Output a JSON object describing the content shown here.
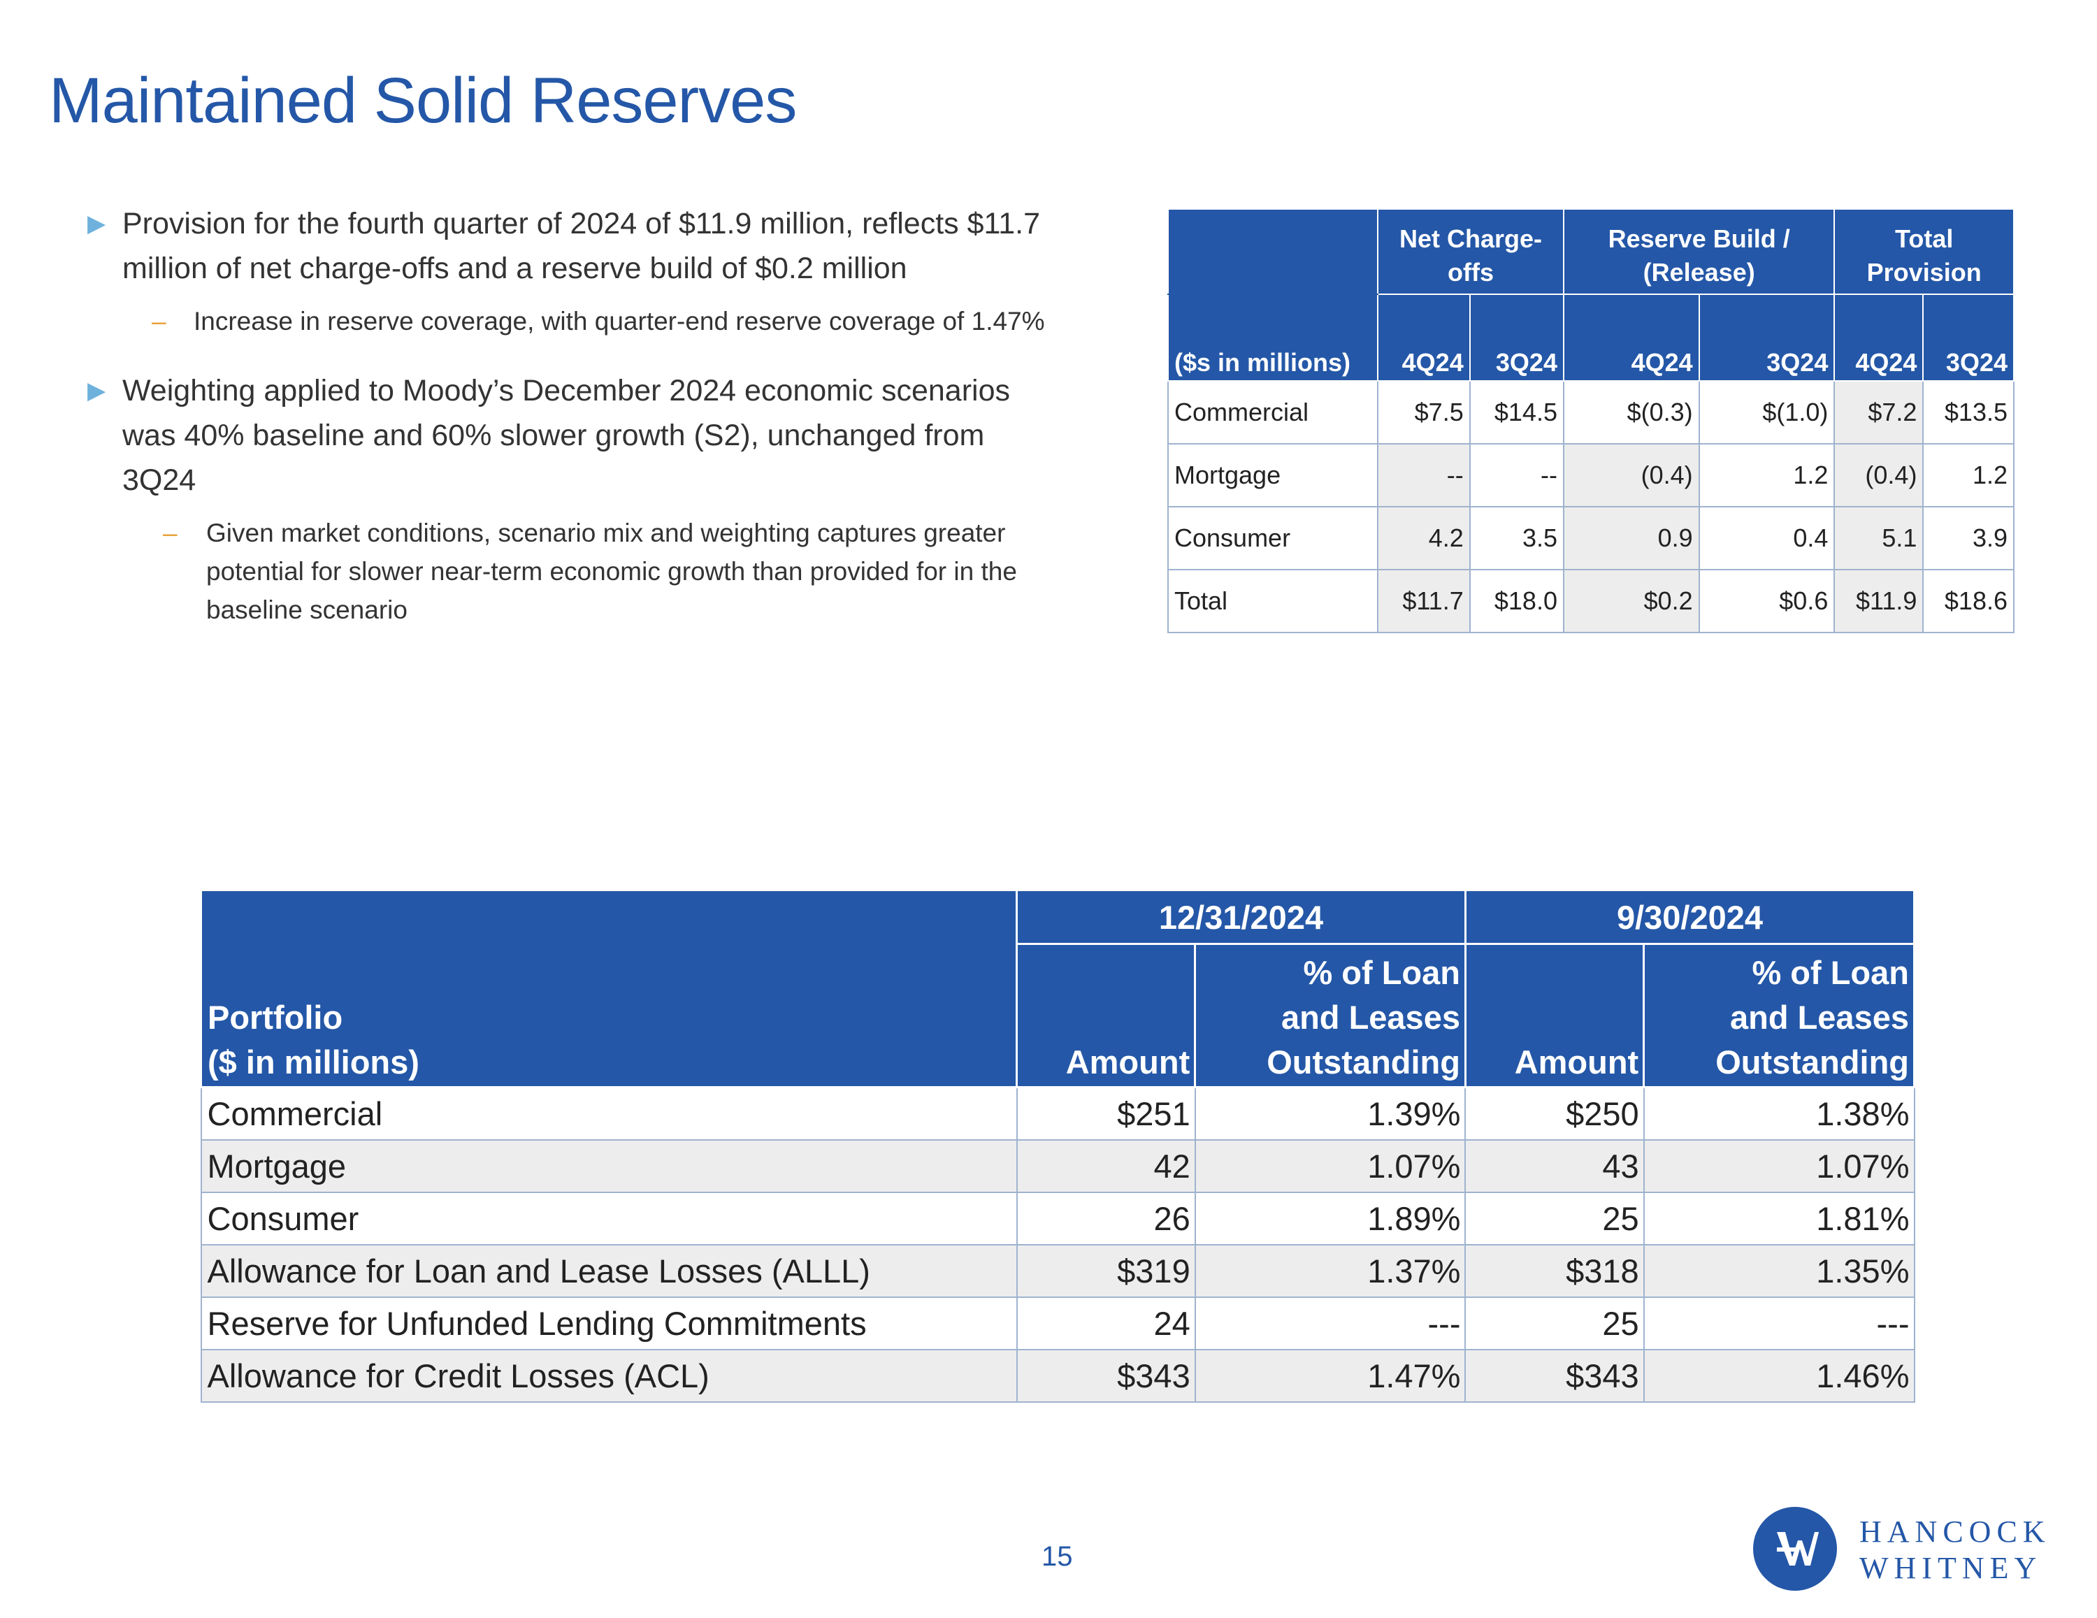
{
  "title": "Maintained Solid Reserves",
  "bullets": [
    {
      "text": "Provision for the fourth quarter of 2024 of $11.9 million, reflects $11.7 million of net charge-offs and a reserve build of $0.2 million",
      "sub": "Increase in reserve coverage, with quarter-end reserve coverage of 1.47%"
    },
    {
      "text": "Weighting applied to Moody’s December 2024 economic scenarios was 40% baseline and 60% slower growth (S2), unchanged from 3Q24",
      "sub": "Given market conditions, scenario mix and weighting captures greater potential for slower near-term economic growth than provided for in the baseline scenario"
    }
  ],
  "provision_table": {
    "unit_label": "($s in millions)",
    "groups": [
      "Net Charge-offs",
      "Reserve Build / (Release)",
      "Total Provision"
    ],
    "quarters": [
      "4Q24",
      "3Q24",
      "4Q24",
      "3Q24",
      "4Q24",
      "3Q24"
    ],
    "rows": [
      {
        "label": "Commercial",
        "values": [
          "$7.5",
          "$14.5",
          "$(0.3)",
          "$(1.0)",
          "$7.2",
          "$13.5"
        ]
      },
      {
        "label": "Mortgage",
        "values": [
          "--",
          "--",
          "(0.4)",
          "1.2",
          "(0.4)",
          "1.2"
        ]
      },
      {
        "label": "Consumer",
        "values": [
          "4.2",
          "3.5",
          "0.9",
          "0.4",
          "5.1",
          "3.9"
        ]
      },
      {
        "label": "Total",
        "values": [
          "$11.7",
          "$18.0",
          "$0.2",
          "$0.6",
          "$11.9",
          "$18.6"
        ]
      }
    ]
  },
  "reserve_table": {
    "portfolio_label": "Portfolio",
    "unit_label": "($ in millions)",
    "dates": [
      "12/31/2024",
      "9/30/2024"
    ],
    "col_amount": "Amount",
    "col_pct": [
      "% of Loan",
      "and Leases",
      "Outstanding"
    ],
    "rows": [
      {
        "label": "Commercial",
        "values": [
          "$251",
          "1.39%",
          "$250",
          "1.38%"
        ]
      },
      {
        "label": "Mortgage",
        "values": [
          "42",
          "1.07%",
          "43",
          "1.07%"
        ]
      },
      {
        "label": "Consumer",
        "values": [
          "26",
          "1.89%",
          "25",
          "1.81%"
        ]
      },
      {
        "label": "Allowance for Loan and Lease Losses (ALLL)",
        "values": [
          "$319",
          "1.37%",
          "$318",
          "1.35%"
        ]
      },
      {
        "label": "Reserve for Unfunded Lending Commitments",
        "values": [
          "24",
          "---",
          "25",
          "---"
        ]
      },
      {
        "label": "Allowance for Credit Losses (ACL)",
        "values": [
          "$343",
          "1.47%",
          "$343",
          "1.46%"
        ]
      }
    ]
  },
  "page_number": "15",
  "logo": {
    "line1": "HANCOCK",
    "line2": "WHITNEY"
  },
  "colors": {
    "brand_blue": "#2457A7",
    "bullet_arrow": "#6FB1DD",
    "sub_dash": "#E8A33C",
    "row_shade": "#EDEDED"
  }
}
